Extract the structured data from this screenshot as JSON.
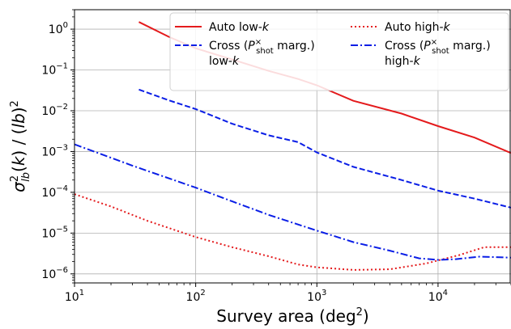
{
  "chart_data": {
    "type": "line",
    "title": "",
    "xlabel": "Survey area (deg²)",
    "ylabel": "σ²_lb(k) / (lb)²",
    "xscale": "log",
    "yscale": "log",
    "xlim": [
      10,
      40000
    ],
    "ylim": [
      6e-07,
      3
    ],
    "grid": true,
    "legend_position": "top-right",
    "x_ticks": [
      {
        "value": 10,
        "base": "10",
        "exp": "1"
      },
      {
        "value": 100,
        "base": "10",
        "exp": "2"
      },
      {
        "value": 1000,
        "base": "10",
        "exp": "3"
      },
      {
        "value": 10000,
        "base": "10",
        "exp": "4"
      }
    ],
    "y_ticks": [
      {
        "value": 1.0,
        "base": "10",
        "exp": "0"
      },
      {
        "value": 0.1,
        "base": "10",
        "exp": "−1"
      },
      {
        "value": 0.01,
        "base": "10",
        "exp": "−2"
      },
      {
        "value": 0.001,
        "base": "10",
        "exp": "−3"
      },
      {
        "value": 0.0001,
        "base": "10",
        "exp": "−4"
      },
      {
        "value": 1e-05,
        "base": "10",
        "exp": "−5"
      },
      {
        "value": 1e-06,
        "base": "10",
        "exp": "−6"
      }
    ],
    "series": [
      {
        "name": "Auto low-k",
        "color": "#e41a1c",
        "dash": "solid",
        "points": [
          [
            34,
            1.5
          ],
          [
            60,
            0.65
          ],
          [
            100,
            0.34
          ],
          [
            200,
            0.18
          ],
          [
            400,
            0.095
          ],
          [
            700,
            0.06
          ],
          [
            1000,
            0.042
          ],
          [
            2000,
            0.0175
          ],
          [
            5000,
            0.0085
          ],
          [
            10000,
            0.0042
          ],
          [
            20000,
            0.0022
          ],
          [
            40000,
            0.00092
          ]
        ]
      },
      {
        "name": "Cross (P×shot marg.) low-k",
        "color": "#0a1ee6",
        "dash": "dashed",
        "points": [
          [
            34,
            0.033
          ],
          [
            60,
            0.018
          ],
          [
            100,
            0.011
          ],
          [
            200,
            0.0048
          ],
          [
            400,
            0.0025
          ],
          [
            700,
            0.0017
          ],
          [
            1000,
            0.00095
          ],
          [
            2000,
            0.00042
          ],
          [
            5000,
            0.0002
          ],
          [
            10000,
            0.00011
          ],
          [
            20000,
            7e-05
          ],
          [
            40000,
            4.2e-05
          ]
        ]
      },
      {
        "name": "Auto high-k",
        "color": "#e41a1c",
        "dash": "dotted",
        "points": [
          [
            10,
            9e-05
          ],
          [
            20,
            4.5e-05
          ],
          [
            40,
            2e-05
          ],
          [
            100,
            8e-06
          ],
          [
            200,
            4.5e-06
          ],
          [
            400,
            2.7e-06
          ],
          [
            700,
            1.7e-06
          ],
          [
            1000,
            1.45e-06
          ],
          [
            2000,
            1.25e-06
          ],
          [
            4000,
            1.3e-06
          ],
          [
            8000,
            1.8e-06
          ],
          [
            15000,
            2.9e-06
          ],
          [
            24000,
            4.5e-06
          ],
          [
            40000,
            4.5e-06
          ]
        ]
      },
      {
        "name": "Cross (P×shot marg.) high-k",
        "color": "#0a1ee6",
        "dash": "dashdot",
        "points": [
          [
            10,
            0.0015
          ],
          [
            30,
            0.00045
          ],
          [
            100,
            0.00013
          ],
          [
            200,
            6e-05
          ],
          [
            400,
            2.8e-05
          ],
          [
            1000,
            1.15e-05
          ],
          [
            2000,
            6e-06
          ],
          [
            4000,
            3.7e-06
          ],
          [
            7000,
            2.4e-06
          ],
          [
            10000,
            2.2e-06
          ],
          [
            14000,
            2.3e-06
          ],
          [
            22000,
            2.65e-06
          ],
          [
            40000,
            2.5e-06
          ]
        ]
      }
    ],
    "legend": [
      {
        "pre": "Auto low-",
        "k": "k",
        "line2pre": "",
        "line2k": ""
      },
      {
        "pre": "Auto high-",
        "k": "k",
        "line2pre": "",
        "line2k": ""
      },
      {
        "pre": "Cross (",
        "k": "P",
        "sub": "shot",
        "sup": "×",
        "post": " marg.)",
        "line2pre": "low-",
        "line2k": "k"
      },
      {
        "pre": "Cross (",
        "k": "P",
        "sub": "shot",
        "sup": "×",
        "post": " marg.)",
        "line2pre": "high-",
        "line2k": "k"
      }
    ]
  }
}
